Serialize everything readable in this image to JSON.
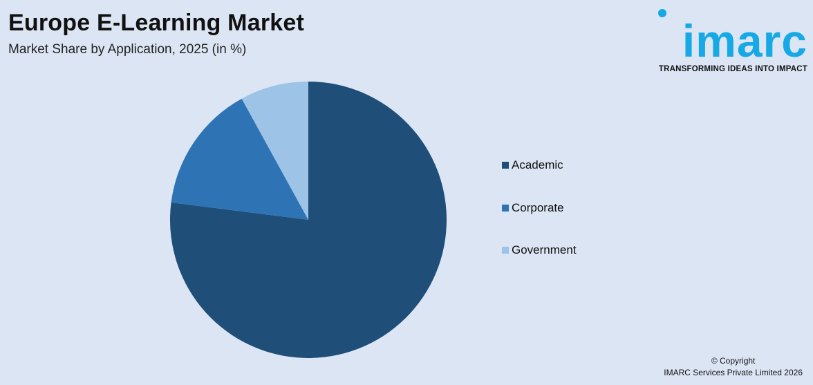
{
  "header": {
    "title": "Europe E-Learning Market",
    "subtitle": "Market Share by Application, 2025 (in %)"
  },
  "logo": {
    "brand": "imarc",
    "tagline": "TRANSFORMING IDEAS INTO IMPACT",
    "color": "#17a9e6"
  },
  "chart_data": {
    "type": "pie",
    "title": "Europe E-Learning Market",
    "subtitle": "Market Share by Application, 2025 (in %)",
    "categories": [
      "Academic",
      "Corporate",
      "Government"
    ],
    "values": [
      77,
      15,
      8
    ],
    "colors": [
      "#1f4e79",
      "#2e74b5",
      "#9dc3e6"
    ],
    "start": "12 o'clock",
    "direction": "clockwise",
    "legend_position": "right"
  },
  "footer": {
    "copyright_line1": "© Copyright",
    "copyright_line2": "IMARC Services Private Limited 2026"
  }
}
